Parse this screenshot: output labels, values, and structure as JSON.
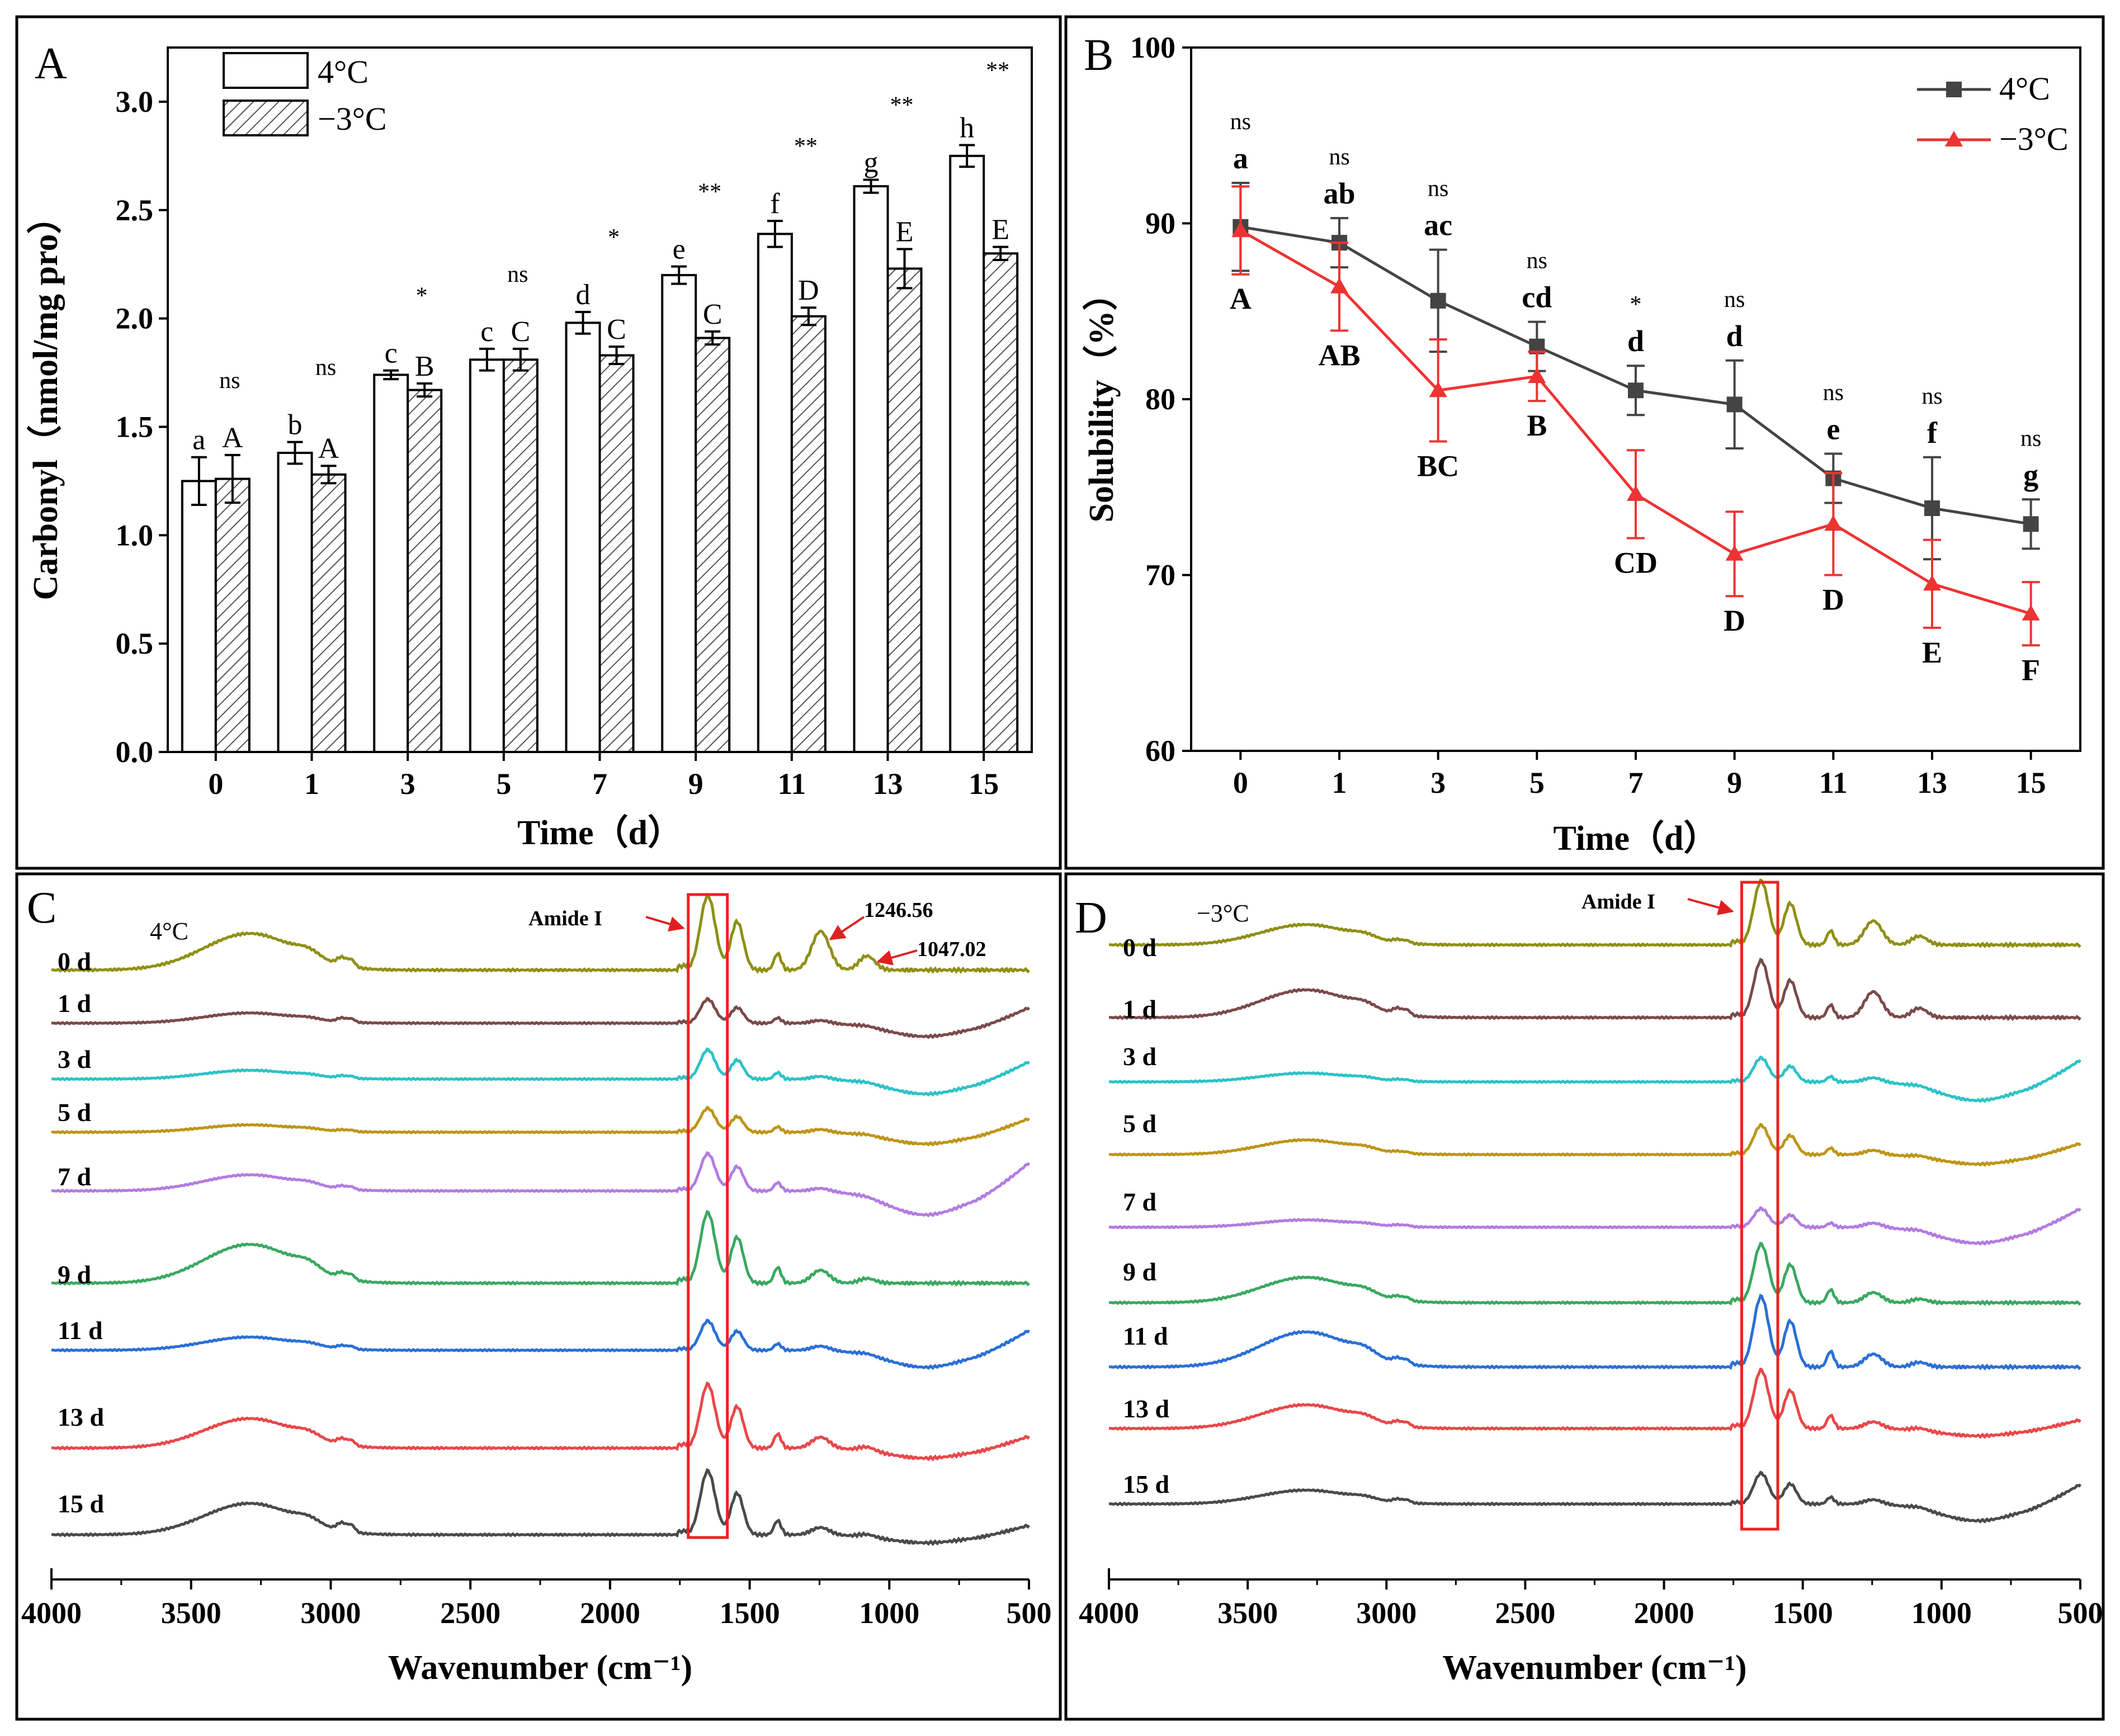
{
  "colors": {
    "series_4C": "#444444",
    "series_m3C": "#ee3333",
    "box": "#ee2222",
    "spectra": {
      "0 d": "#8f8f16",
      "1 d": "#7a4a4a",
      "3 d": "#2cc2c6",
      "5 d": "#bd9518",
      "7 d": "#b37be0",
      "9 d": "#3aa860",
      "11 d": "#2a6fd6",
      "13 d": "#e8474a",
      "15 d": "#4a4a4a"
    }
  },
  "chart_data": [
    {
      "panel": "A",
      "type": "bar",
      "title": "A",
      "xlabel": "Time（d）",
      "ylabel": "Carbonyl（nmol/mg pro）",
      "ylim": [
        0,
        3.25
      ],
      "yticks": [
        "0.0",
        "0.5",
        "1.0",
        "1.5",
        "2.0",
        "2.5",
        "3.0"
      ],
      "categories": [
        "0",
        "1",
        "3",
        "5",
        "7",
        "9",
        "11",
        "13",
        "15"
      ],
      "legend_position": "top-left",
      "series": [
        {
          "name": "4°C",
          "values": [
            1.25,
            1.38,
            1.74,
            1.81,
            1.98,
            2.2,
            2.39,
            2.61,
            2.75
          ],
          "errors": [
            0.11,
            0.05,
            0.02,
            0.05,
            0.05,
            0.04,
            0.06,
            0.03,
            0.05
          ],
          "letters": [
            "a",
            "b",
            "c",
            "c",
            "d",
            "e",
            "f",
            "g",
            "h"
          ]
        },
        {
          "name": "−3°C",
          "values": [
            1.26,
            1.28,
            1.67,
            1.81,
            1.83,
            1.91,
            2.01,
            2.23,
            2.3
          ],
          "errors": [
            0.11,
            0.04,
            0.03,
            0.05,
            0.04,
            0.03,
            0.04,
            0.09,
            0.03
          ],
          "letters": [
            "A",
            "A",
            "B",
            "C",
            "C",
            "C",
            "D",
            "E",
            "E"
          ]
        }
      ],
      "significance": [
        "ns",
        "ns",
        "*",
        "ns",
        "*",
        "**",
        "**",
        "**",
        "**"
      ]
    },
    {
      "panel": "B",
      "type": "line",
      "title": "B",
      "xlabel": "Time（d）",
      "ylabel": "Solubility（%）",
      "ylim": [
        60,
        100
      ],
      "yticks": [
        "60",
        "70",
        "80",
        "90",
        "100"
      ],
      "categories": [
        "0",
        "1",
        "3",
        "5",
        "7",
        "9",
        "11",
        "13",
        "15"
      ],
      "legend_position": "top-right",
      "series": [
        {
          "name": "4°C",
          "values": [
            89.8,
            88.9,
            85.6,
            83.0,
            80.5,
            79.7,
            75.5,
            73.8,
            72.9
          ],
          "errors": [
            2.5,
            1.4,
            2.9,
            1.4,
            1.4,
            2.5,
            1.4,
            2.9,
            1.4
          ],
          "letters": [
            "a",
            "ab",
            "ac",
            "cd",
            "d",
            "d",
            "e",
            "f",
            "g"
          ]
        },
        {
          "name": "−3°C",
          "values": [
            89.6,
            86.4,
            80.5,
            81.3,
            74.6,
            71.2,
            72.9,
            69.5,
            67.8
          ],
          "errors": [
            2.5,
            2.5,
            2.9,
            1.4,
            2.5,
            2.4,
            2.9,
            2.5,
            1.8
          ],
          "letters": [
            "A",
            "AB",
            "BC",
            "B",
            "CD",
            "D",
            "D",
            "E",
            "F"
          ]
        }
      ],
      "significance": [
        "ns",
        "ns",
        "ns",
        "ns",
        "*",
        "ns",
        "ns",
        "ns",
        "ns"
      ]
    },
    {
      "panel": "C",
      "type": "line",
      "title": "C",
      "condition": "4°C",
      "xlabel": "Wavenumber (cm⁻¹)",
      "xlim": [
        4000,
        500
      ],
      "xticks": [
        "4000",
        "3500",
        "3000",
        "2500",
        "2000",
        "1500",
        "1000",
        "500"
      ],
      "series_labels": [
        "0 d",
        "1 d",
        "3 d",
        "5 d",
        "7 d",
        "9 d",
        "11 d",
        "13 d",
        "15 d"
      ],
      "highlight_band": [
        1720,
        1580
      ],
      "annotations": [
        "Amide I",
        "1246.56",
        "1047.02"
      ]
    },
    {
      "panel": "D",
      "type": "line",
      "title": "D",
      "condition": "−3°C",
      "xlabel": "Wavenumber (cm⁻¹)",
      "xlim": [
        4000,
        500
      ],
      "xticks": [
        "4000",
        "3500",
        "3000",
        "2500",
        "2000",
        "1500",
        "1000",
        "500"
      ],
      "series_labels": [
        "0 d",
        "1 d",
        "3 d",
        "5 d",
        "7 d",
        "9 d",
        "11 d",
        "13 d",
        "15 d"
      ],
      "highlight_band": [
        1720,
        1590
      ],
      "annotations": [
        "Amide I"
      ]
    }
  ]
}
